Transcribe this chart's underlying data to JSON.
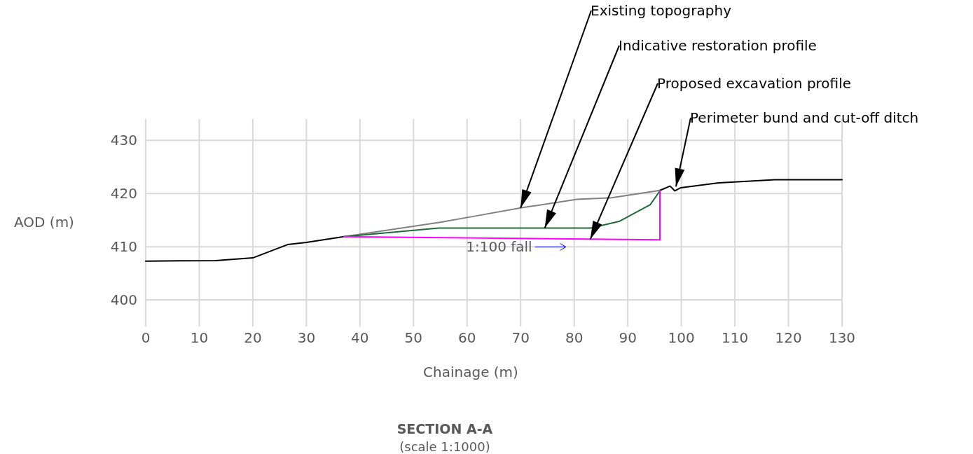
{
  "chart_data": {
    "type": "line",
    "title": "SECTION A-A",
    "subtitle": "(scale 1:1000)",
    "xlabel": "Chainage (m)",
    "ylabel": "AOD (m)",
    "xlim": [
      0,
      130
    ],
    "ylim": [
      395,
      434
    ],
    "xticks": [
      0,
      10,
      20,
      30,
      40,
      50,
      60,
      70,
      80,
      90,
      100,
      110,
      120,
      130
    ],
    "yticks": [
      400,
      410,
      420,
      430
    ],
    "grid": true,
    "series": [
      {
        "color": "#000000",
        "x": [
          0,
          13,
          20,
          26.5,
          30,
          37,
          60,
          96,
          97.9,
          98.8,
          99.9,
          107,
          117.5,
          130
        ],
        "values": [
          407.3,
          407.4,
          407.9,
          410.4,
          410.8,
          411.9,
          null,
          420.6,
          421.4,
          420.5,
          421.1,
          422.0,
          422.6,
          422.6
        ]
      },
      {
        "color": "#808080",
        "x": [
          37,
          55,
          61.7,
          70,
          80.5,
          87,
          96
        ],
        "values": [
          411.9,
          414.6,
          415.8,
          417.3,
          418.9,
          419.2,
          420.6
        ]
      },
      {
        "color": "#1e6b35",
        "x": [
          37,
          54.7,
          83.1,
          88.5,
          94.2,
          96
        ],
        "values": [
          411.9,
          413.5,
          413.5,
          414.8,
          417.9,
          420.5
        ]
      },
      {
        "color": "#ff00ff",
        "x": [
          37,
          96,
          96
        ],
        "values": [
          411.9,
          411.3,
          420.5
        ]
      }
    ],
    "annotations": [
      {
        "text": "Existing topography",
        "x": 70,
        "y": 417.3
      },
      {
        "text": "Indicative restoration profile",
        "x": 74.5,
        "y": 413.5
      },
      {
        "text": "Proposed excavation profile",
        "x": 83,
        "y": 411.4
      },
      {
        "text": "Perimeter bund and cut-off ditch",
        "x": 99,
        "y": 421.3
      },
      "1:100 fall"
    ]
  }
}
